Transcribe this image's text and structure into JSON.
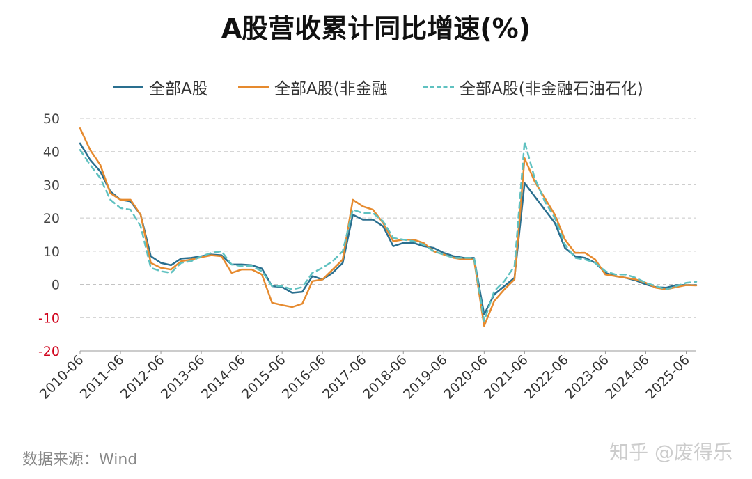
{
  "chart_data": {
    "type": "line",
    "title": "A股营收累计同比增速(%)",
    "xlabel": "",
    "ylabel": "",
    "ylim": [
      -20,
      50
    ],
    "yticks": [
      50,
      40,
      30,
      20,
      10,
      0,
      -10,
      -20
    ],
    "negative_tick_color": "#d0021b",
    "grid": "horizontal dashed",
    "legend_position": "top",
    "x_tick_labels": [
      "2010-06",
      "2011-06",
      "2012-06",
      "2013-06",
      "2014-06",
      "2015-06",
      "2016-06",
      "2017-06",
      "2018-06",
      "2019-06",
      "2020-06",
      "2021-06",
      "2022-06",
      "2023-06",
      "2024-06",
      "2025-06"
    ],
    "x_points_per_year": 4,
    "series": [
      {
        "name": "全部A股",
        "color": "#2a6f8f",
        "style": "solid",
        "values": [
          42.5,
          37.5,
          34,
          28,
          25.5,
          25,
          21,
          8.5,
          6.5,
          5.8,
          7.8,
          8,
          8.5,
          9,
          8.8,
          6,
          6,
          5.8,
          4.8,
          -0.5,
          -0.8,
          -2.5,
          -2.2,
          2.5,
          1.5,
          3.5,
          6.5,
          21,
          19.5,
          19.5,
          17.5,
          11.5,
          12.5,
          12.5,
          11.5,
          11,
          9.5,
          8.5,
          8,
          8,
          -9,
          -3,
          -0.5,
          2,
          30.5,
          26.5,
          22.5,
          18.5,
          11,
          8.5,
          8,
          6.5,
          3.5,
          2.5,
          2,
          1.2,
          0,
          -0.8,
          -1,
          -0.2,
          -0.2,
          -0.2
        ]
      },
      {
        "name": "全部A股(非金融",
        "color": "#e68a2e",
        "style": "solid",
        "values": [
          47,
          40.5,
          36,
          27.5,
          25.5,
          25.5,
          21,
          6.5,
          5,
          4.5,
          7,
          7.5,
          8.2,
          8.8,
          8.5,
          3.5,
          4.5,
          4.5,
          3,
          -5.5,
          -6.2,
          -6.8,
          -5.8,
          1,
          1.5,
          4.5,
          7.5,
          25.5,
          23.5,
          22.5,
          18.5,
          13,
          13.5,
          13.5,
          12.5,
          10,
          9,
          8,
          7.5,
          7.5,
          -12.5,
          -5,
          -1.5,
          1.5,
          38,
          31,
          26,
          21,
          13.5,
          9.5,
          9.5,
          7.5,
          3,
          2.5,
          2,
          1.5,
          0.5,
          -1,
          -1.5,
          -0.8,
          -0.2,
          -0.3
        ]
      },
      {
        "name": "全部A股(非金融石油石化)",
        "color": "#5fc1c0",
        "style": "dashed",
        "values": [
          40.5,
          36,
          32,
          25.5,
          23,
          22.5,
          17.5,
          5,
          4,
          3.5,
          6.5,
          7,
          8.5,
          9.5,
          10,
          6,
          5.5,
          5.5,
          4,
          -0.5,
          -0.5,
          -1.5,
          -0.8,
          3.5,
          5,
          7,
          10,
          22.5,
          21.5,
          21.5,
          19,
          14,
          13.5,
          13,
          12,
          10,
          9,
          8,
          8,
          8,
          -11,
          -2,
          1,
          5.5,
          43,
          32,
          25,
          20,
          12,
          8,
          7.5,
          6.5,
          4,
          3,
          3,
          2,
          0.5,
          -0.5,
          -1.5,
          -0.5,
          0.5,
          0.8
        ]
      }
    ]
  },
  "legend_items": [
    "全部A股",
    "全部A股(非金融",
    "全部A股(非金融石油石化)"
  ],
  "source_note": "数据来源：Wind",
  "watermark_credit": "知乎 @废得乐"
}
